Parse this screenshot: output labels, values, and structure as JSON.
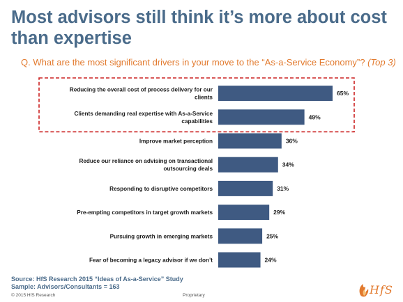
{
  "page": {
    "title": "Most advisors still think it’s more about cost than expertise",
    "question_main": "Q. What are the most significant drivers in your move to the “As-a-Service Economy”? ",
    "question_italic": "(Top 3)",
    "source_line1": "Source: HfS Research 2015 “Ideas of As-a-Service” Study",
    "source_line2": "Sample: Advisors/Consultants = 163",
    "copyright": "© 2015 HfS Research",
    "proprietary": "Proprietary",
    "logo_text": "HfS"
  },
  "colors": {
    "title": "#4a6b8a",
    "question": "#e27a2e",
    "bar": "#3f5a82",
    "highlight_box": "#cc2222"
  },
  "chart_data": {
    "type": "bar",
    "orientation": "horizontal",
    "categories": [
      "Reducing the overall cost of process delivery for our clients",
      "Clients demanding real expertise with As-a-Service capabilities",
      "Improve market perception",
      "Reduce our reliance on advising on transactional outsourcing deals",
      "Responding to disruptive competitors",
      "Pre-empting competitors in target growth markets",
      "Pursuing growth in emerging markets",
      "Fear of becoming a legacy advisor if we don’t"
    ],
    "values": [
      65,
      49,
      36,
      34,
      31,
      29,
      25,
      24
    ],
    "value_labels": [
      "65%",
      "49%",
      "36%",
      "34%",
      "31%",
      "29%",
      "25%",
      "24%"
    ],
    "highlighted": [
      0,
      1
    ],
    "xlim": [
      0,
      70
    ],
    "grid": false,
    "legend": "none"
  }
}
